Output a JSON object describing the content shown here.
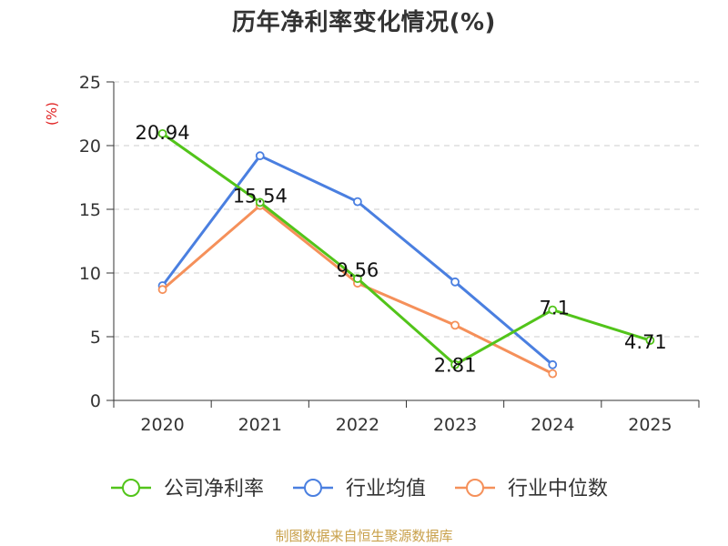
{
  "chart_data": {
    "type": "line",
    "title": "历年净利率变化情况(%)",
    "ylabel": "(%)",
    "xlabel": "",
    "ylim": [
      0,
      25
    ],
    "yticks": [
      0,
      5,
      10,
      15,
      20,
      25
    ],
    "grid": true,
    "legend_position": "bottom",
    "categories": [
      "2020",
      "2021",
      "2022",
      "2023",
      "2024",
      "2025"
    ],
    "series": [
      {
        "name": "公司净利率",
        "color": "#52c41a",
        "values": [
          20.94,
          15.54,
          9.56,
          2.81,
          7.1,
          4.71
        ],
        "labels": [
          "20.94",
          "15.54",
          "9.56",
          "2.81",
          "7.1",
          "4.71"
        ]
      },
      {
        "name": "行业均值",
        "color": "#4a7fe0",
        "values": [
          9.0,
          19.2,
          15.6,
          9.3,
          2.8,
          null
        ]
      },
      {
        "name": "行业中位数",
        "color": "#f5905a",
        "values": [
          8.7,
          15.3,
          9.2,
          5.9,
          2.1,
          null
        ]
      }
    ]
  },
  "source": "制图数据来自恒生聚源数据库"
}
